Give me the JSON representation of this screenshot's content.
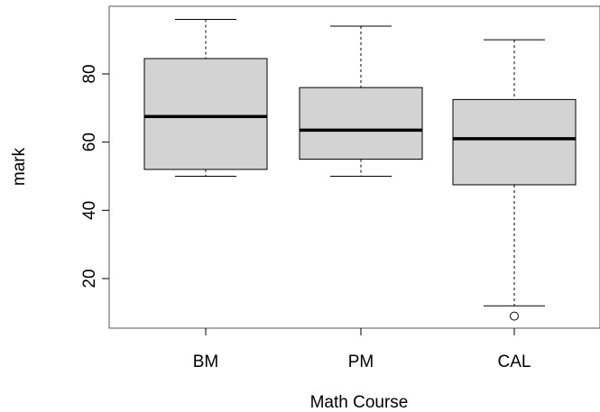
{
  "chart_data": {
    "type": "boxplot",
    "title": "",
    "xlabel": "Math Course",
    "ylabel": "mark",
    "categories": [
      "BM",
      "PM",
      "CAL"
    ],
    "ylim": [
      5,
      100
    ],
    "yticks": [
      20,
      40,
      60,
      80
    ],
    "grid": false,
    "legend": "none",
    "box_fill": "#d3d3d3",
    "box_stroke": "#000000",
    "boxes": [
      {
        "name": "BM",
        "whisker_low": 50,
        "q1": 52,
        "median": 67.5,
        "q3": 84.5,
        "whisker_high": 96,
        "outliers": []
      },
      {
        "name": "PM",
        "whisker_low": 50,
        "q1": 55,
        "median": 63.5,
        "q3": 76,
        "whisker_high": 94,
        "outliers": []
      },
      {
        "name": "CAL",
        "whisker_low": 12,
        "q1": 47.5,
        "median": 61,
        "q3": 72.5,
        "whisker_high": 90,
        "outliers": [
          9
        ]
      }
    ]
  }
}
